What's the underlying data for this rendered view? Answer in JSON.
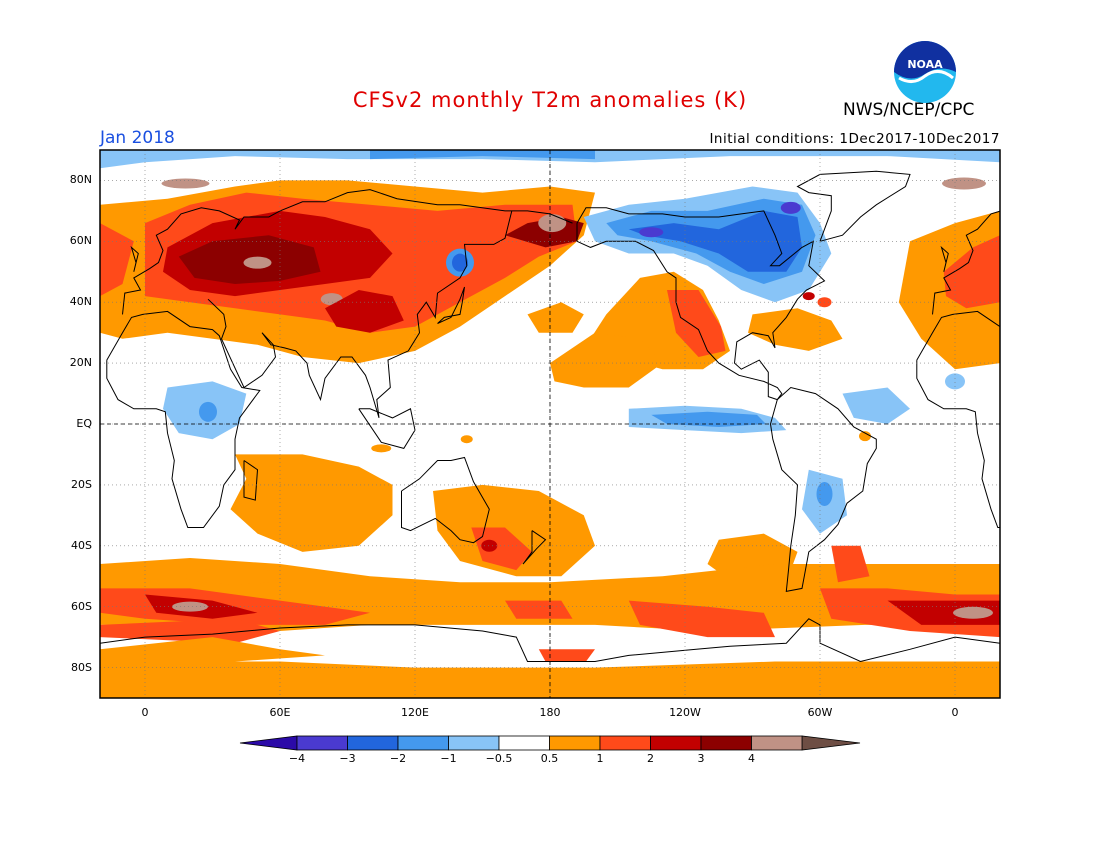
{
  "header": {
    "title": "CFSv2 monthly T2m anomalies (K)",
    "issuer": "NWS/NCEP/CPC",
    "logo_text": "NOAA",
    "valid_month": "Jan 2018",
    "initial_conditions": "Initial conditions: 1Dec2017-10Dec2017"
  },
  "map": {
    "projection": "equirectangular",
    "lon_range": [
      -20,
      380
    ],
    "lat_range": [
      -90,
      90
    ],
    "lat_labels": [
      {
        "text": "80N",
        "lat": 80
      },
      {
        "text": "60N",
        "lat": 60
      },
      {
        "text": "40N",
        "lat": 40
      },
      {
        "text": "20N",
        "lat": 20
      },
      {
        "text": "EQ",
        "lat": 0
      },
      {
        "text": "20S",
        "lat": -20
      },
      {
        "text": "40S",
        "lat": -40
      },
      {
        "text": "60S",
        "lat": -60
      },
      {
        "text": "80S",
        "lat": -80
      }
    ],
    "lon_labels": [
      {
        "text": "0",
        "lon": 0
      },
      {
        "text": "60E",
        "lon": 60
      },
      {
        "text": "120E",
        "lon": 120
      },
      {
        "text": "180",
        "lon": 180
      },
      {
        "text": "120W",
        "lon": 240
      },
      {
        "text": "60W",
        "lon": 300
      },
      {
        "text": "0",
        "lon": 360
      }
    ],
    "colors": {
      "cold4": "#2b0aa8",
      "cold3": "#4a3ad0",
      "cold2": "#2266dd",
      "cold1": "#4499ee",
      "cold05": "#88c4f7",
      "neutral": "#ffffff",
      "warm05": "#ff9900",
      "warm1": "#ff4a1a",
      "warm2": "#c20000",
      "warm3": "#8c0000",
      "warm4": "#c09285",
      "warm5": "#6e4e44",
      "ocean": "#ffffff",
      "land": "#000000"
    }
  },
  "colorbar": {
    "labels": [
      "−4",
      "−3",
      "−2",
      "−1",
      "−0.5",
      "0.5",
      "1",
      "2",
      "3",
      "4"
    ],
    "colors": [
      "#4a3ad0",
      "#2266dd",
      "#4499ee",
      "#88c4f7",
      "#ffffff",
      "#ff9900",
      "#ff4a1a",
      "#c20000",
      "#8c0000",
      "#c09285"
    ],
    "under_color": "#2b0aa8",
    "over_color": "#6e4e44"
  }
}
